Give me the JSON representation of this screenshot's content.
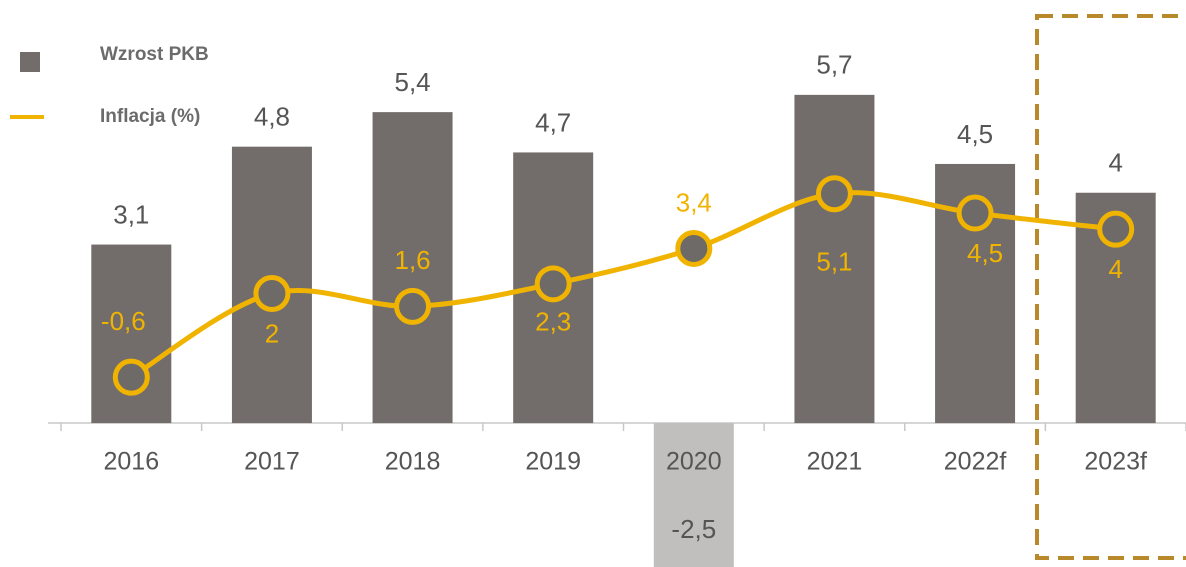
{
  "chart_data": {
    "type": "bar",
    "categories": [
      "2016",
      "2017",
      "2018",
      "2019",
      "2020",
      "2021",
      "2022f",
      "2023f"
    ],
    "series": [
      {
        "name": "Wzrost PKB",
        "type": "bar",
        "color": "#726d6a",
        "colors": [
          "#726d6a",
          "#726d6a",
          "#726d6a",
          "#726d6a",
          "#c1bfbe",
          "#726d6a",
          "#726d6a",
          "#726d6a"
        ],
        "values": [
          3.1,
          4.8,
          5.4,
          4.7,
          -2.5,
          5.7,
          4.5,
          4
        ],
        "value_labels": [
          "3,1",
          "4,8",
          "5,4",
          "4,7",
          "-2,5",
          "5,7",
          "4,5",
          "4"
        ]
      },
      {
        "name": "Inflacja (%)",
        "type": "line",
        "axis": "y2",
        "color": "#f0b400",
        "values": [
          -0.6,
          2,
          1.6,
          2.3,
          3.4,
          5.1,
          4.5,
          4
        ],
        "value_labels": [
          "-0,6",
          "2",
          "1,6",
          "2,3",
          "3,4",
          "5,1",
          "4,5",
          "4"
        ]
      }
    ],
    "ylim": [
      -2.5,
      7
    ],
    "y2lim": [
      -6.5,
      10.5
    ],
    "legend": "top-left"
  }
}
